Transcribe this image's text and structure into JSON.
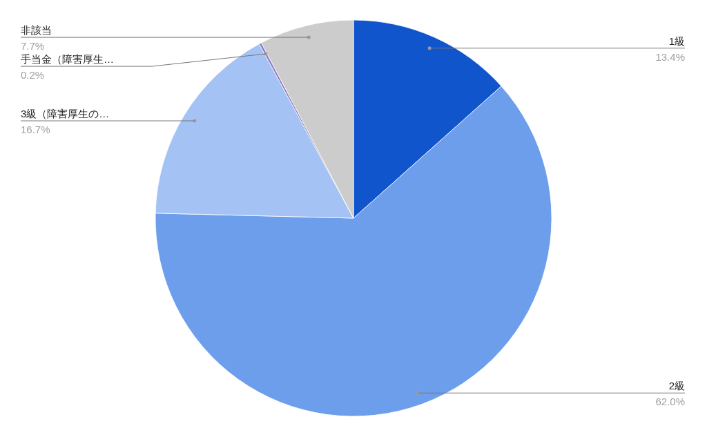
{
  "chart_data": {
    "type": "pie",
    "categories": [
      "1級",
      "2級",
      "3級（障害厚生の…",
      "手当金（障害厚生…",
      "非該当"
    ],
    "values": [
      13.4,
      62.0,
      16.7,
      0.2,
      7.7
    ],
    "colors": [
      "#1155cc",
      "#6d9eeb",
      "#a4c2f4",
      "#8e7cc3",
      "#cccccc"
    ],
    "value_labels": [
      "13.4%",
      "62.0%",
      "16.7%",
      "0.2%",
      "7.7%"
    ]
  }
}
